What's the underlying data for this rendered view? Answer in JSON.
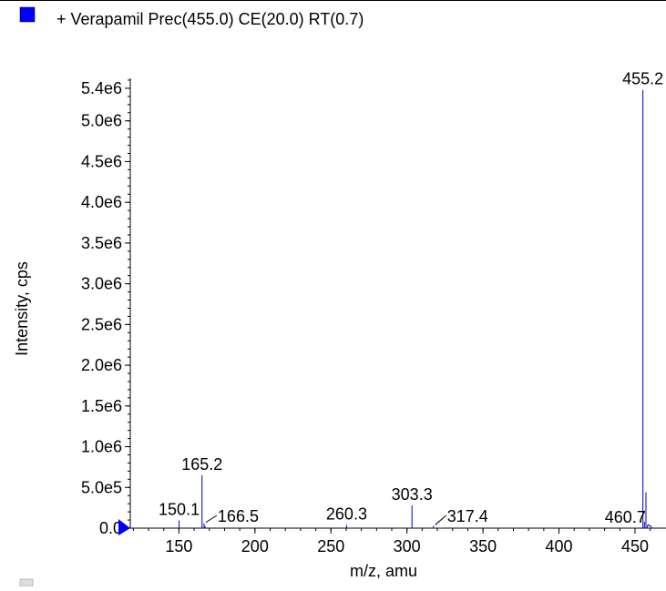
{
  "legend": {
    "label": "+ Verapamil Prec(455.0) CE(20.0) RT(0.7)",
    "color": "#0000ff",
    "placement": "top-left"
  },
  "chart_data": {
    "type": "bar",
    "title": "",
    "xlabel": "m/z, amu",
    "ylabel": "Intensity, cps",
    "xlim": [
      118,
      462
    ],
    "ylim": [
      0,
      5500000
    ],
    "xticks": [
      150,
      200,
      250,
      300,
      350,
      400,
      450
    ],
    "yticks": [
      {
        "value": 0,
        "label": "0.0"
      },
      {
        "value": 500000,
        "label": "5.0e5"
      },
      {
        "value": 1000000,
        "label": "1.0e6"
      },
      {
        "value": 1500000,
        "label": "1.5e6"
      },
      {
        "value": 2000000,
        "label": "2.0e6"
      },
      {
        "value": 2500000,
        "label": "2.5e6"
      },
      {
        "value": 3000000,
        "label": "3.0e6"
      },
      {
        "value": 3500000,
        "label": "3.5e6"
      },
      {
        "value": 4000000,
        "label": "4.0e6"
      },
      {
        "value": 4500000,
        "label": "4.5e6"
      },
      {
        "value": 5000000,
        "label": "5.0e6"
      },
      {
        "value": 5400000,
        "label": "5.4e6"
      }
    ],
    "grid": false,
    "series_color": "#0000cc",
    "peaks": [
      {
        "x": 150.1,
        "y": 95000
      },
      {
        "x": 165.2,
        "y": 650000
      },
      {
        "x": 166.5,
        "y": 60000
      },
      {
        "x": 167.2,
        "y": 25000
      },
      {
        "x": 260.3,
        "y": 40000
      },
      {
        "x": 303.3,
        "y": 280000
      },
      {
        "x": 317.4,
        "y": 30000
      },
      {
        "x": 455.2,
        "y": 5380000
      },
      {
        "x": 456.2,
        "y": 80000
      },
      {
        "x": 457.2,
        "y": 440000
      },
      {
        "x": 458.2,
        "y": 35000
      },
      {
        "x": 460.7,
        "y": 20000
      }
    ],
    "annotations": [
      {
        "text": "150.1",
        "x": 150.1,
        "leader": false
      },
      {
        "text": "165.2",
        "x": 165.2,
        "leader": false
      },
      {
        "text": "166.5",
        "x": 166.5,
        "leader": true
      },
      {
        "text": "260.3",
        "x": 260.3,
        "leader": false
      },
      {
        "text": "303.3",
        "x": 303.3,
        "leader": false
      },
      {
        "text": "317.4",
        "x": 317.4,
        "leader": true
      },
      {
        "text": "455.2",
        "x": 455.2,
        "leader": false
      },
      {
        "text": "460.7",
        "x": 460.7,
        "leader": true
      }
    ]
  }
}
